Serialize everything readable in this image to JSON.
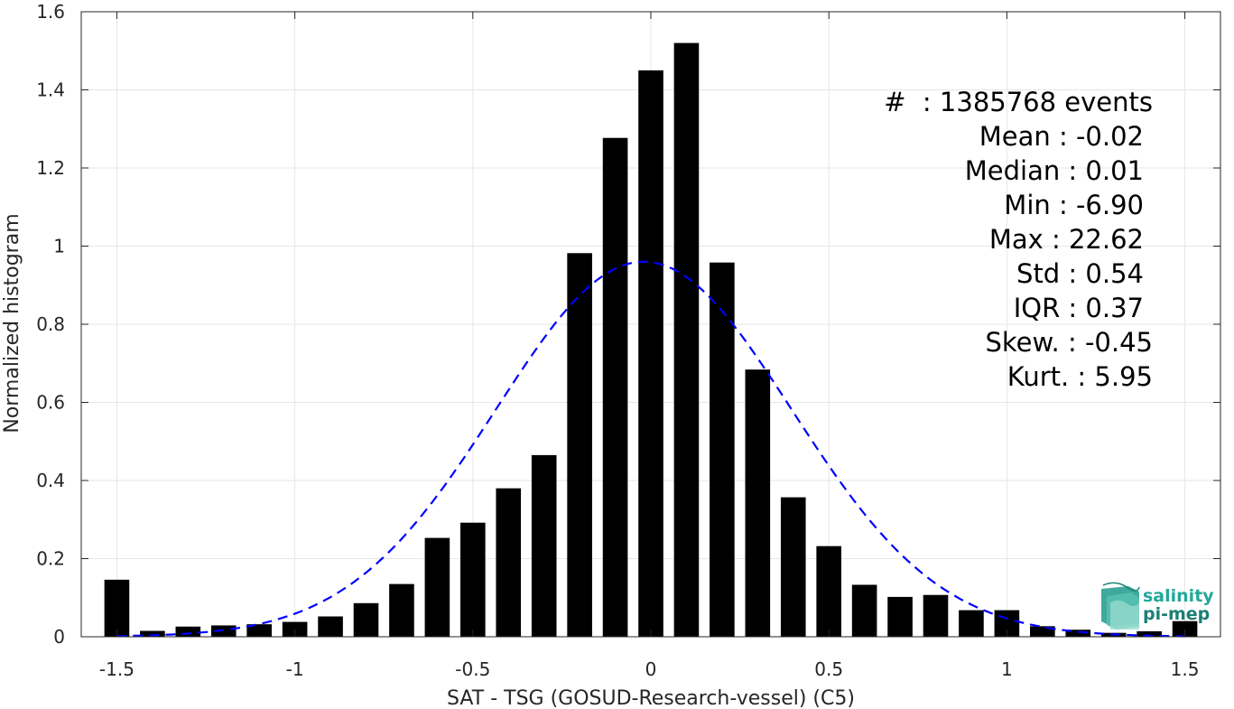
{
  "chart_data": {
    "type": "bar",
    "xlabel": "SAT - TSG (GOSUD-Research-vessel) (C5)",
    "ylabel": "Normalized histogram",
    "xlim": [
      -1.6,
      1.6
    ],
    "ylim": [
      0,
      1.6
    ],
    "grid": true,
    "x_ticks": [
      {
        "value": -1.5,
        "label": "-1.5"
      },
      {
        "value": -1,
        "label": "-1"
      },
      {
        "value": -0.5,
        "label": "-0.5"
      },
      {
        "value": 0,
        "label": "0"
      },
      {
        "value": 0.5,
        "label": "0.5"
      },
      {
        "value": 1,
        "label": "1"
      },
      {
        "value": 1.5,
        "label": "1.5"
      }
    ],
    "y_ticks": [
      {
        "value": 0,
        "label": "0"
      },
      {
        "value": 0.2,
        "label": "0.2"
      },
      {
        "value": 0.4,
        "label": "0.4"
      },
      {
        "value": 0.6,
        "label": "0.6"
      },
      {
        "value": 0.8,
        "label": "0.8"
      },
      {
        "value": 1,
        "label": "1"
      },
      {
        "value": 1.2,
        "label": "1.2"
      },
      {
        "value": 1.4,
        "label": "1.4"
      },
      {
        "value": 1.6,
        "label": "1.6"
      }
    ],
    "bar_width": 0.07,
    "bars": {
      "x": [
        -1.5,
        -1.4,
        -1.3,
        -1.2,
        -1.1,
        -1.0,
        -0.9,
        -0.8,
        -0.7,
        -0.6,
        -0.5,
        -0.4,
        -0.3,
        -0.2,
        -0.1,
        0.0,
        0.1,
        0.2,
        0.3,
        0.4,
        0.5,
        0.6,
        0.7,
        0.8,
        0.9,
        1.0,
        1.1,
        1.2,
        1.3,
        1.4,
        1.5
      ],
      "values": [
        0.146,
        0.015,
        0.026,
        0.029,
        0.032,
        0.038,
        0.052,
        0.086,
        0.135,
        0.253,
        0.292,
        0.38,
        0.465,
        0.982,
        1.277,
        1.45,
        1.52,
        0.958,
        0.684,
        0.357,
        0.232,
        0.133,
        0.102,
        0.107,
        0.068,
        0.068,
        0.027,
        0.018,
        0.01,
        0.014,
        0.04
      ],
      "color": "#000000"
    },
    "fit_curve": {
      "type": "gaussian",
      "style": "dashed",
      "color": "#0000ff",
      "mean": -0.02,
      "std": 0.415,
      "peak": 0.96,
      "x_range": [
        -1.5,
        1.5
      ]
    },
    "annotation_lines": [
      "#  : 1385768 events",
      "Mean : -0.02",
      "Median : 0.01",
      "Min : -6.90",
      "Max : 22.62",
      "Std : 0.54",
      "IQR : 0.37",
      "Skew. : -0.45",
      "Kurt. : 5.95"
    ]
  },
  "logo": {
    "line1": "salinity",
    "line2": "pi-mep",
    "color": "#22a89a"
  }
}
